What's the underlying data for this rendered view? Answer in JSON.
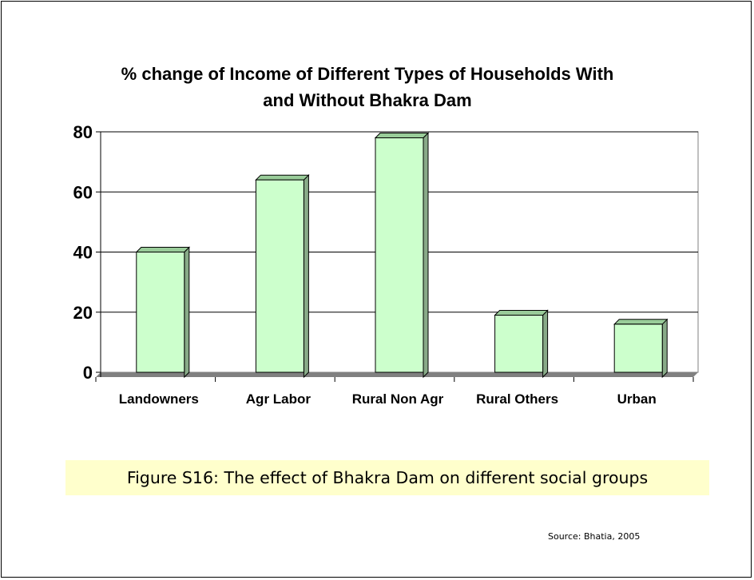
{
  "chart_data": {
    "type": "bar",
    "title_lines": [
      "% change of Income of Different Types of Households With",
      "and Without Bhakra Dam"
    ],
    "categories": [
      "Landowners",
      "Agr Labor",
      "Rural Non Agr",
      "Rural Others",
      "Urban"
    ],
    "values": [
      40,
      64,
      78,
      19,
      16
    ],
    "ylim": [
      0,
      80
    ],
    "yticks": [
      0,
      20,
      40,
      60,
      80
    ],
    "grid": true,
    "legend": "none",
    "bar_color": "#ccffcc",
    "bar_top_color": "#99cc99"
  },
  "caption": "Figure S16:  The effect of Bhakra Dam on different social groups",
  "source": "Source: Bhatia, 2005"
}
